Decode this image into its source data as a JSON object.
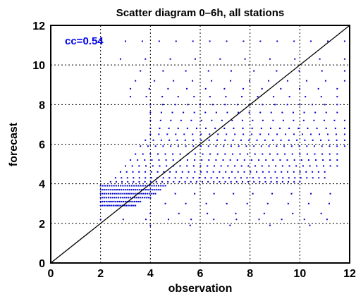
{
  "chart_data": {
    "type": "scatter",
    "title": "Scatter diagram 0–6h, all stations",
    "xlabel": "observation",
    "ylabel": "forecast",
    "xlim": [
      0,
      12
    ],
    "ylim": [
      0,
      12
    ],
    "xticks": [
      "0",
      "2",
      "4",
      "6",
      "8",
      "10",
      "12"
    ],
    "yticks": [
      "0",
      "2",
      "4",
      "6",
      "8",
      "10",
      "12"
    ],
    "grid": true,
    "annotation": "cc=0.54",
    "reference_line": "1:1 diagonal",
    "colors": {
      "points": "#0000cc",
      "annotation": "#0000ee",
      "line": "#000000"
    },
    "point_groups": [
      {
        "x_range": [
          2.0,
          3.4
        ],
        "y": 2.9,
        "n": 20
      },
      {
        "x_range": [
          2.0,
          3.6
        ],
        "y": 3.1,
        "n": 22
      },
      {
        "x_range": [
          2.0,
          4.0
        ],
        "y": 3.3,
        "n": 26
      },
      {
        "x_range": [
          2.0,
          4.2
        ],
        "y": 3.5,
        "n": 28
      },
      {
        "x_range": [
          2.0,
          4.4
        ],
        "y": 3.7,
        "n": 30
      },
      {
        "x_range": [
          2.0,
          4.6
        ],
        "y": 3.9,
        "n": 30
      },
      {
        "x_range": [
          2.4,
          10.0
        ],
        "y": 4.1,
        "n": 34
      },
      {
        "x_range": [
          2.6,
          11.0
        ],
        "y": 4.3,
        "n": 36
      },
      {
        "x_range": [
          2.8,
          11.0
        ],
        "y": 4.6,
        "n": 34
      },
      {
        "x_range": [
          3.0,
          11.5
        ],
        "y": 4.9,
        "n": 32
      },
      {
        "x_range": [
          3.2,
          11.5
        ],
        "y": 5.2,
        "n": 30
      },
      {
        "x_range": [
          3.4,
          11.5
        ],
        "y": 5.5,
        "n": 28
      },
      {
        "x_range": [
          3.6,
          11.8
        ],
        "y": 5.9,
        "n": 28
      },
      {
        "x_range": [
          3.8,
          11.8
        ],
        "y": 6.2,
        "n": 26
      },
      {
        "x_range": [
          4.0,
          11.8
        ],
        "y": 6.5,
        "n": 24
      },
      {
        "x_range": [
          4.0,
          11.8
        ],
        "y": 6.8,
        "n": 22
      },
      {
        "x_range": [
          4.0,
          11.8
        ],
        "y": 7.2,
        "n": 20
      },
      {
        "x_range": [
          4.0,
          11.5
        ],
        "y": 7.6,
        "n": 18
      },
      {
        "x_range": [
          4.0,
          11.5
        ],
        "y": 8.0,
        "n": 16
      },
      {
        "x_range": [
          3.2,
          11.5
        ],
        "y": 8.4,
        "n": 14
      },
      {
        "x_range": [
          3.2,
          11.5
        ],
        "y": 8.8,
        "n": 12
      },
      {
        "x_range": [
          3.4,
          11.8
        ],
        "y": 9.2,
        "n": 12
      },
      {
        "x_range": [
          3.6,
          11.8
        ],
        "y": 9.7,
        "n": 10
      },
      {
        "x_range": [
          2.8,
          11.8
        ],
        "y": 10.3,
        "n": 10
      },
      {
        "x_range": [
          3.0,
          11.8
        ],
        "y": 11.2,
        "n": 14
      },
      {
        "x_range": [
          2.0,
          12.0
        ],
        "y": 2.2,
        "n": 12
      },
      {
        "x_range": [
          4.0,
          12.0
        ],
        "y": 1.9,
        "n": 6
      },
      {
        "x_range": [
          4.0,
          12.0
        ],
        "y": 2.5,
        "n": 8
      },
      {
        "x_range": [
          4.6,
          12.0
        ],
        "y": 3.0,
        "n": 10
      },
      {
        "x_range": [
          5.0,
          12.0
        ],
        "y": 3.5,
        "n": 10
      }
    ]
  }
}
